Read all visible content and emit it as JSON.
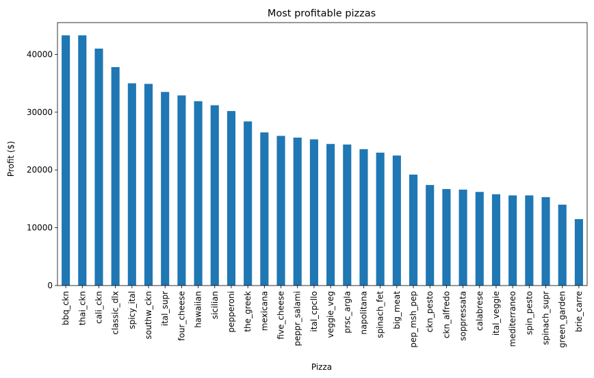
{
  "chart_data": {
    "type": "bar",
    "title": "Most profitable pizzas",
    "xlabel": "Pizza",
    "ylabel": "Profit ($)",
    "ylim": [
      0,
      45500
    ],
    "yticks": [
      0,
      10000,
      20000,
      30000,
      40000
    ],
    "grid": false,
    "legend": "none",
    "color": "#1f77b4",
    "categories": [
      "bbq_ckn",
      "thai_ckn",
      "cali_ckn",
      "classic_dlx",
      "spicy_ital",
      "southw_ckn",
      "ital_supr",
      "four_cheese",
      "hawaiian",
      "sicilian",
      "pepperoni",
      "the_greek",
      "mexicana",
      "five_cheese",
      "peppr_salami",
      "ital_cpcllo",
      "veggie_veg",
      "prsc_argla",
      "napolitana",
      "spinach_fet",
      "big_meat",
      "pep_msh_pep",
      "ckn_pesto",
      "ckn_alfredo",
      "soppressata",
      "calabrese",
      "ital_veggie",
      "mediterraneo",
      "spin_pesto",
      "spinach_supr",
      "green_garden",
      "brie_carre"
    ],
    "values": [
      43300,
      43300,
      41000,
      37800,
      35000,
      34900,
      33500,
      32900,
      31900,
      31200,
      30200,
      28400,
      26500,
      25900,
      25600,
      25300,
      24500,
      24400,
      23600,
      23000,
      22500,
      19200,
      17400,
      16700,
      16600,
      16200,
      15800,
      15600,
      15600,
      15300,
      14000,
      11500
    ]
  }
}
